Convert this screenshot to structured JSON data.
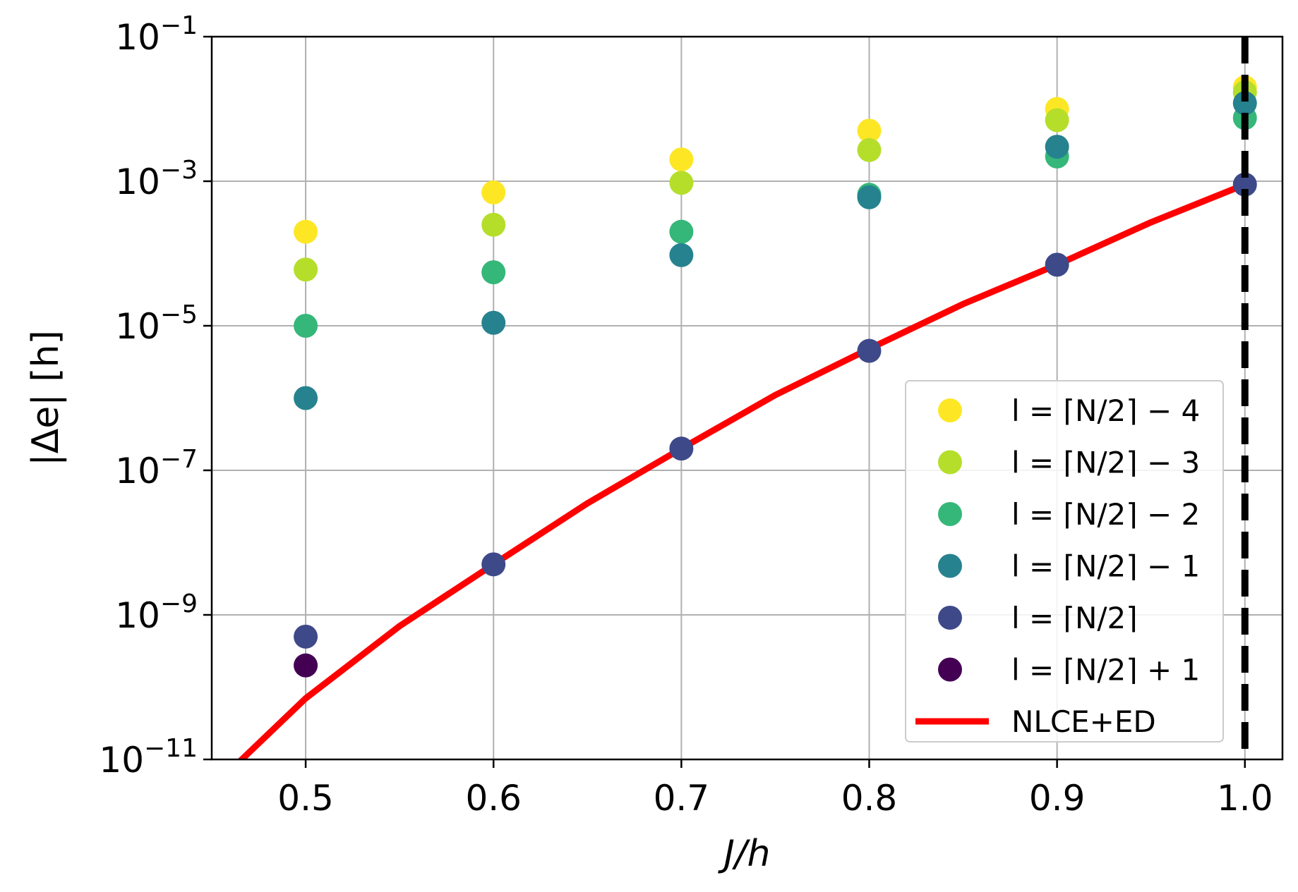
{
  "chart_data": {
    "type": "scatter",
    "xlabel": "J/h",
    "ylabel": "|Δe| [h]",
    "xlim": [
      0.45,
      1.02
    ],
    "ylim": [
      1e-11,
      0.1
    ],
    "yscale": "log",
    "grid": true,
    "legend_position": "lower-right",
    "x_ticks": [
      "0.5",
      "0.6",
      "0.7",
      "0.8",
      "0.9",
      "1.0"
    ],
    "x_tick_values": [
      0.5,
      0.6,
      0.7,
      0.8,
      0.9,
      1.0
    ],
    "y_tick_values": [
      1e-11,
      1e-09,
      1e-07,
      1e-05,
      0.001,
      0.1
    ],
    "y_tick_exponents": [
      "−11",
      "−9",
      "−7",
      "−5",
      "−3",
      "−1"
    ],
    "y_tick_base": "10",
    "vertical_line": {
      "x": 1.0,
      "color": "#000000",
      "style": "dashed"
    },
    "series": [
      {
        "name": "l = ⌈N/2⌉ − 4",
        "color": "#fde725",
        "x": [
          0.5,
          0.6,
          0.7,
          0.8,
          0.9,
          1.0
        ],
        "y": [
          0.0002,
          0.0007,
          0.002,
          0.005,
          0.01,
          0.02
        ]
      },
      {
        "name": "l = ⌈N/2⌉ − 3",
        "color": "#b5de2b",
        "x": [
          0.5,
          0.6,
          0.7,
          0.8,
          0.9,
          1.0
        ],
        "y": [
          6e-05,
          0.00025,
          0.00095,
          0.0027,
          0.007,
          0.017
        ]
      },
      {
        "name": "l = ⌈N/2⌉ − 2",
        "color": "#35b779",
        "x": [
          0.5,
          0.6,
          0.7,
          0.8,
          0.9,
          1.0
        ],
        "y": [
          1e-05,
          5.5e-05,
          0.0002,
          0.00065,
          0.0022,
          0.0075
        ]
      },
      {
        "name": "l = ⌈N/2⌉ − 1",
        "color": "#26828e",
        "x": [
          0.5,
          0.6,
          0.7,
          0.8,
          0.9,
          1.0
        ],
        "y": [
          1e-06,
          1.1e-05,
          9.5e-05,
          0.0006,
          0.003,
          0.012
        ]
      },
      {
        "name": "l = ⌈N/2⌉",
        "color": "#3e4989",
        "x": [
          0.5,
          0.6,
          0.7,
          0.8,
          0.9,
          1.0
        ],
        "y": [
          5e-10,
          5e-09,
          2e-07,
          4.5e-06,
          7e-05,
          0.0009
        ]
      },
      {
        "name": "l = ⌈N/2⌉ + 1",
        "color": "#440154",
        "x": [
          0.5
        ],
        "y": [
          2e-10
        ]
      }
    ],
    "line": {
      "name": "NLCE+ED",
      "color": "#ff0000",
      "x": [
        0.45,
        0.5,
        0.55,
        0.6,
        0.65,
        0.7,
        0.75,
        0.8,
        0.85,
        0.9,
        0.95,
        1.0
      ],
      "y": [
        4e-12,
        7e-11,
        7e-10,
        5e-09,
        3.5e-08,
        2e-07,
        1.1e-06,
        4.8e-06,
        2e-05,
        7e-05,
        0.00027,
        0.0009
      ]
    }
  }
}
